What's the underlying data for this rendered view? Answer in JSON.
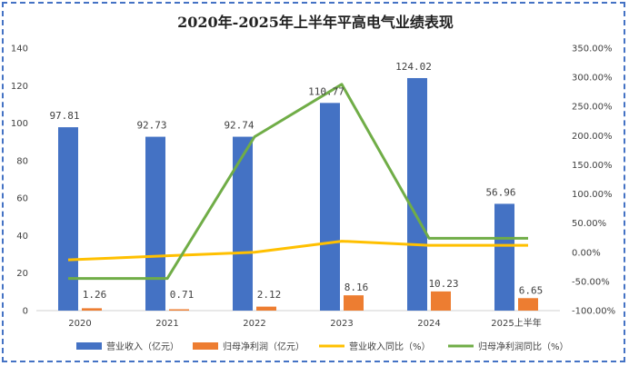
{
  "chart_data": {
    "type": "bar",
    "title": "2020年-2025年上半年平高电气业绩表现",
    "categories": [
      "2020",
      "2021",
      "2022",
      "2023",
      "2024",
      "2025上半年"
    ],
    "y_left": {
      "lim": [
        0,
        140
      ],
      "ticks": [
        0,
        20,
        40,
        60,
        80,
        100,
        120,
        140
      ]
    },
    "y_right": {
      "lim": [
        -100,
        350
      ],
      "ticks": [
        -100,
        -50,
        0,
        50,
        100,
        150,
        200,
        250,
        300,
        350
      ],
      "tick_labels": [
        "-100.00%",
        "-50.00%",
        "0.00%",
        "50.00%",
        "100.00%",
        "150.00%",
        "200.00%",
        "250.00%",
        "300.00%",
        "350.00%"
      ]
    },
    "series": [
      {
        "name": "营业收入（亿元）",
        "kind": "bar",
        "axis": "left",
        "color": "#4472c4",
        "values": [
          97.81,
          92.73,
          92.74,
          110.77,
          124.02,
          56.96
        ],
        "labels": [
          "97.81",
          "92.73",
          "92.74",
          "110.77",
          "124.02",
          "56.96"
        ]
      },
      {
        "name": "归母净利润（亿元）",
        "kind": "bar",
        "axis": "left",
        "color": "#ed7d31",
        "values": [
          1.26,
          0.71,
          2.12,
          8.16,
          10.23,
          6.65
        ],
        "labels": [
          "1.26",
          "0.71",
          "2.12",
          "8.16",
          "10.23",
          "6.65"
        ]
      },
      {
        "name": "营业收入同比（%）",
        "kind": "line",
        "axis": "right",
        "color": "#ffc000",
        "values": [
          -13,
          -6,
          0,
          19,
          12,
          12
        ]
      },
      {
        "name": "归母净利润同比（%）",
        "kind": "line",
        "axis": "right",
        "color": "#70ad47",
        "values": [
          -45,
          -45,
          198,
          288,
          24,
          24
        ]
      }
    ],
    "grid": false,
    "legend_position": "bottom"
  }
}
